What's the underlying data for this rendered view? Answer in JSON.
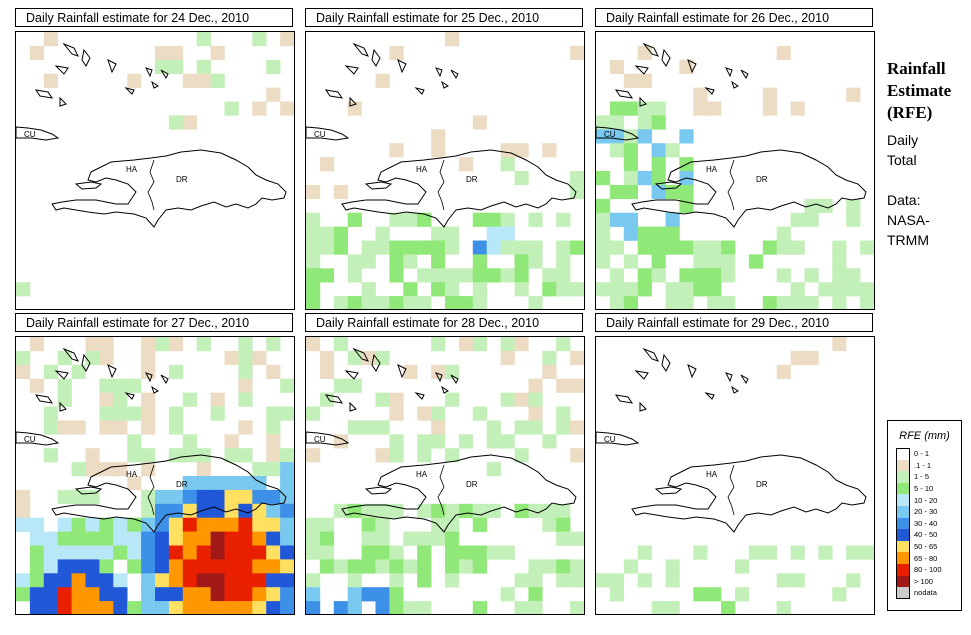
{
  "panels": [
    {
      "title": "Daily Rainfall estimate for  24 Dec., 2010",
      "seed": 11,
      "pattern": "light-north"
    },
    {
      "title": "Daily Rainfall estimate for  25 Dec., 2010",
      "seed": 23,
      "pattern": "south"
    },
    {
      "title": "Daily Rainfall estimate for  26 Dec., 2010",
      "seed": 37,
      "pattern": "west-south"
    },
    {
      "title": "Daily Rainfall estimate for  27 Dec., 2010",
      "seed": 41,
      "pattern": "heavy"
    },
    {
      "title": "Daily Rainfall estimate for  28 Dec., 2010",
      "seed": 53,
      "pattern": "moderate"
    },
    {
      "title": "Daily Rainfall estimate for  29 Dec., 2010",
      "seed": 67,
      "pattern": "sparse"
    }
  ],
  "map_labels": {
    "cu": "CU",
    "ha": "HA",
    "dr": "DR"
  },
  "side": {
    "title_line1": "Rainfall",
    "title_line2": "Estimate",
    "title_line3": "(RFE)",
    "daily1": "Daily",
    "daily2": "Total",
    "data1": "Data:",
    "data2": "NASA-",
    "data3": "TRMM"
  },
  "legend": {
    "title": "RFE (mm)",
    "items": [
      {
        "label": "0 - 1",
        "color": "#ffffff"
      },
      {
        "label": ".1 - 1",
        "color": "#ecdcc4"
      },
      {
        "label": "1 - 5",
        "color": "#c3f0b8"
      },
      {
        "label": "5 - 10",
        "color": "#8fe878"
      },
      {
        "label": "10 - 20",
        "color": "#b8e8f8"
      },
      {
        "label": "20 - 30",
        "color": "#78c8f0"
      },
      {
        "label": "30 - 40",
        "color": "#3c90e8"
      },
      {
        "label": "40 - 50",
        "color": "#2058d8"
      },
      {
        "label": "50 - 65",
        "color": "#ffe060"
      },
      {
        "label": "65 - 80",
        "color": "#ff9800"
      },
      {
        "label": "80 - 100",
        "color": "#e82000"
      },
      {
        "label": "> 100",
        "color": "#a01818"
      },
      {
        "label": "nodata",
        "color": "#cccccc"
      }
    ]
  }
}
